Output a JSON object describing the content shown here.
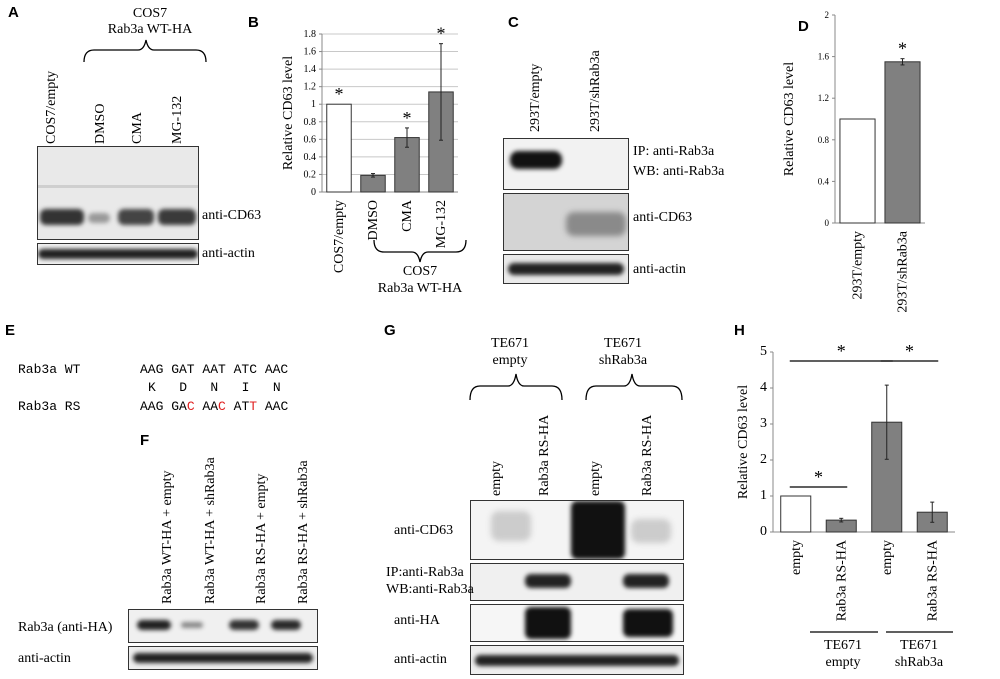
{
  "panels": {
    "A": {
      "letter": "A",
      "group_title_1": "COS7",
      "group_title_2": "Rab3a WT-HA",
      "lanes": [
        "COS7/empty",
        "DMSO",
        "CMA",
        "MG-132"
      ],
      "blot_labels": [
        "anti-CD63",
        "anti-actin"
      ]
    },
    "B": {
      "letter": "B",
      "group_title_1": "COS7",
      "group_title_2": "Rab3a WT-HA"
    },
    "C": {
      "letter": "C",
      "lanes": [
        "293T/empty",
        "293T/shRab3a"
      ],
      "blot_label_1a": "IP: anti-Rab3a",
      "blot_label_1b": "WB: anti-Rab3a",
      "blot_label_2": "anti-CD63",
      "blot_label_3": "anti-actin"
    },
    "D": {
      "letter": "D"
    },
    "E": {
      "letter": "E",
      "row1_label": "Rab3a WT",
      "row1_seq": "AAG GAT AAT ATC AAC",
      "aa_seq": "K   D   N   I   N",
      "row2_label": "Rab3a RS",
      "row2_parts": [
        "AAG GA",
        "C",
        " AA",
        "C",
        " AT",
        "T",
        " AAC"
      ],
      "mutation_color": "#e02020"
    },
    "F": {
      "letter": "F",
      "lanes": [
        "Rab3a WT-HA + empty",
        "Rab3a WT-HA + shRab3a",
        "Rab3a RS-HA + empty",
        "Rab3a RS-HA + shRab3a"
      ],
      "blot_labels": [
        "Rab3a (anti-HA)",
        "anti-actin"
      ]
    },
    "G": {
      "letter": "G",
      "group1_line1": "TE671",
      "group1_line2": "empty",
      "group2_line1": "TE671",
      "group2_line2": "shRab3a",
      "lanes": [
        "empty",
        "Rab3a RS-HA",
        "empty",
        "Rab3a RS-HA"
      ],
      "blot_label_1": "anti-CD63",
      "blot_label_2a": "IP:anti-Rab3a",
      "blot_label_2b": "WB:anti-Rab3a",
      "blot_label_3": "anti-HA",
      "blot_label_4": "anti-actin"
    },
    "H": {
      "letter": "H",
      "group1_line1": "TE671",
      "group1_line2": "empty",
      "group2_line1": "TE671",
      "group2_line2": "shRab3a"
    }
  },
  "chart_data": [
    {
      "panel": "B",
      "type": "bar",
      "categories": [
        "COS7/empty",
        "DMSO",
        "CMA",
        "MG-132"
      ],
      "values": [
        1.0,
        0.19,
        0.62,
        1.14
      ],
      "errors": [
        0,
        0.02,
        0.11,
        0.55
      ],
      "significance": [
        "*",
        "",
        "*",
        "*"
      ],
      "ylabel": "Relative CD63 level",
      "ylim": [
        0,
        1.8
      ],
      "yticks": [
        "0",
        "0.2",
        "0.4",
        "0.6",
        "0.8",
        "1",
        "1.2",
        "1.4",
        "1.6",
        "1.8"
      ],
      "bar_colors": [
        "#ffffff",
        "#808080",
        "#808080",
        "#808080"
      ],
      "grid": true
    },
    {
      "panel": "D",
      "type": "bar",
      "categories": [
        "293T/empty",
        "293T/shRab3a"
      ],
      "values": [
        1.0,
        1.55
      ],
      "errors": [
        0,
        0.03
      ],
      "significance": [
        "",
        "*"
      ],
      "ylabel": "Relative CD63 level",
      "ylim": [
        0,
        2
      ],
      "yticks": [
        "0",
        "0.4",
        "0.8",
        "1.2",
        "1.6",
        "2"
      ],
      "bar_colors": [
        "#ffffff",
        "#808080"
      ],
      "grid": false
    },
    {
      "panel": "H",
      "type": "bar",
      "categories": [
        "empty",
        "Rab3a RS-HA",
        "empty",
        "Rab3a RS-HA"
      ],
      "values": [
        1.0,
        0.33,
        3.05,
        0.55
      ],
      "errors": [
        0,
        0.05,
        1.03,
        0.28
      ],
      "ylabel": "Relative CD63 level",
      "ylim": [
        0,
        5
      ],
      "yticks": [
        "0",
        "1",
        "2",
        "3",
        "4",
        "5"
      ],
      "bar_colors": [
        "#ffffff",
        "#808080",
        "#808080",
        "#808080"
      ],
      "grid": false,
      "significance_brackets": [
        {
          "from": 0,
          "to": 1,
          "label": "*"
        },
        {
          "from": 0,
          "to": 2,
          "label": "*"
        },
        {
          "from": 2,
          "to": 3,
          "label": "*"
        }
      ]
    }
  ]
}
